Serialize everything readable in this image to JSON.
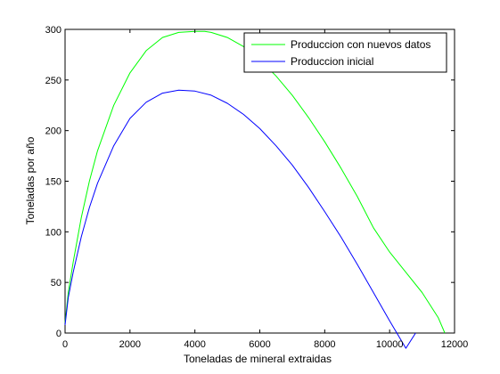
{
  "chart_data": {
    "type": "line",
    "title": "",
    "xlabel": "Toneladas de mineral extraidas",
    "ylabel": "Toneladas por año",
    "xlim": [
      0,
      12000
    ],
    "ylim": [
      0,
      300
    ],
    "xticks": [
      0,
      2000,
      4000,
      6000,
      8000,
      10000,
      12000
    ],
    "yticks": [
      0,
      50,
      100,
      150,
      200,
      250,
      300
    ],
    "grid": false,
    "legend_position": "top-right",
    "series": [
      {
        "name": "Produccion con nuevos datos",
        "color": "#00ff00",
        "x": [
          0,
          100,
          250,
          500,
          750,
          1000,
          1500,
          2000,
          2500,
          3000,
          3500,
          4000,
          4300,
          4500,
          5000,
          5500,
          6000,
          6500,
          7000,
          7500,
          8000,
          8500,
          9000,
          9500,
          10000,
          10500,
          11000,
          11500,
          11700
        ],
        "y": [
          10,
          40,
          70,
          114,
          150,
          180,
          225,
          257,
          279,
          292,
          297,
          298,
          298,
          297,
          292,
          283,
          270,
          254,
          235,
          213,
          189,
          163,
          135,
          104,
          80,
          60,
          40,
          15,
          0
        ]
      },
      {
        "name": "Produccion inicial",
        "color": "#0000ff",
        "x": [
          0,
          100,
          250,
          500,
          750,
          1000,
          1500,
          2000,
          2500,
          3000,
          3500,
          4000,
          4500,
          5000,
          5500,
          6000,
          6500,
          7000,
          7500,
          8000,
          8500,
          9000,
          9500,
          10000,
          10500,
          10800
        ],
        "y": [
          8,
          35,
          60,
          95,
          124,
          148,
          185,
          212,
          228,
          237,
          240,
          239,
          235,
          227,
          216,
          202,
          185,
          166,
          144,
          120,
          95,
          68,
          40,
          12,
          -15,
          0
        ]
      }
    ]
  }
}
